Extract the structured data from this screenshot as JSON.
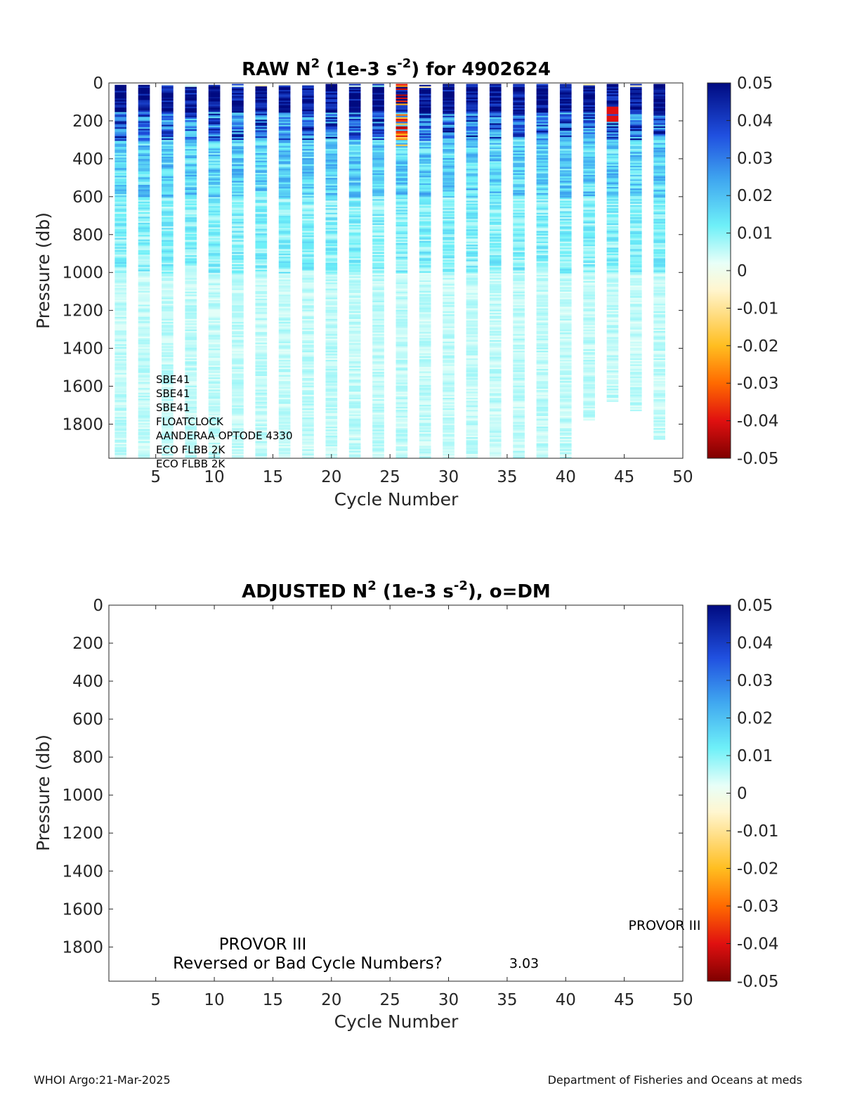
{
  "chart_data": [
    {
      "type": "heatmap",
      "title": {
        "prefix": "RAW N",
        "sup1": "2",
        "mid": " (1e-3 s",
        "sup2": "-2",
        "suffix": ") for 4902624"
      },
      "xlabel": "Cycle Number",
      "ylabel": "Pressure (db)",
      "xlim": [
        1,
        50
      ],
      "ylim": [
        1980,
        0
      ],
      "xticks": [
        5,
        10,
        15,
        20,
        25,
        30,
        35,
        40,
        45,
        50
      ],
      "yticks": [
        0,
        200,
        400,
        600,
        800,
        1000,
        1200,
        1400,
        1600,
        1800
      ],
      "colorbar": {
        "range": [
          -0.05,
          0.05
        ],
        "ticks": [
          "0.05",
          "0.04",
          "0.03",
          "0.02",
          "0.01",
          "0",
          "-0.01",
          "-0.02",
          "-0.03",
          "-0.04",
          "-0.05"
        ]
      },
      "annotations": [
        "SBE41",
        "SBE41",
        "SBE41",
        "FLOATCLOCK",
        "AANDERAA OPTODE 4330",
        "ECO FLBB 2K",
        "ECO FLBB 2K"
      ],
      "profiles": [
        {
          "cycle": 2,
          "top": 10,
          "bottom": 1980
        },
        {
          "cycle": 4,
          "top": 10,
          "bottom": 1980
        },
        {
          "cycle": 6,
          "top": 5,
          "bottom": 1980
        },
        {
          "cycle": 8,
          "top": 5,
          "bottom": 1980
        },
        {
          "cycle": 10,
          "top": 10,
          "bottom": 1980
        },
        {
          "cycle": 12,
          "top": 5,
          "bottom": 1980
        },
        {
          "cycle": 14,
          "top": 10,
          "bottom": 1980
        },
        {
          "cycle": 16,
          "top": 5,
          "bottom": 1980
        },
        {
          "cycle": 18,
          "top": 5,
          "bottom": 1980
        },
        {
          "cycle": 20,
          "top": 5,
          "bottom": 1980
        },
        {
          "cycle": 22,
          "top": 5,
          "bottom": 1980
        },
        {
          "cycle": 24,
          "top": 5,
          "bottom": 1980
        },
        {
          "cycle": 26,
          "top": 5,
          "bottom": 1980
        },
        {
          "cycle": 28,
          "top": 10,
          "bottom": 1980
        },
        {
          "cycle": 30,
          "top": 5,
          "bottom": 1980
        },
        {
          "cycle": 32,
          "top": 5,
          "bottom": 1980
        },
        {
          "cycle": 34,
          "top": 5,
          "bottom": 1980
        },
        {
          "cycle": 36,
          "top": 5,
          "bottom": 1980
        },
        {
          "cycle": 38,
          "top": 5,
          "bottom": 1980
        },
        {
          "cycle": 40,
          "top": 5,
          "bottom": 1980
        },
        {
          "cycle": 42,
          "top": 5,
          "bottom": 1780
        },
        {
          "cycle": 44,
          "top": 5,
          "bottom": 1680
        },
        {
          "cycle": 46,
          "top": 5,
          "bottom": 1730
        },
        {
          "cycle": 48,
          "top": 5,
          "bottom": 1880
        }
      ]
    },
    {
      "type": "heatmap",
      "title": {
        "prefix": "ADJUSTED N",
        "sup1": "2",
        "mid": " (1e-3 s",
        "sup2": "-2",
        "suffix": "), o=DM"
      },
      "xlabel": "Cycle Number",
      "ylabel": "Pressure (db)",
      "xlim": [
        1,
        50
      ],
      "ylim": [
        1980,
        0
      ],
      "xticks": [
        5,
        10,
        15,
        20,
        25,
        30,
        35,
        40,
        45,
        50
      ],
      "yticks": [
        0,
        200,
        400,
        600,
        800,
        1000,
        1200,
        1400,
        1600,
        1800
      ],
      "colorbar": {
        "range": [
          -0.05,
          0.05
        ],
        "ticks": [
          "0.05",
          "0.04",
          "0.03",
          "0.02",
          "0.01",
          "0",
          "-0.01",
          "-0.02",
          "-0.03",
          "-0.04",
          "-0.05"
        ]
      },
      "annotations": [
        "PROVOR III",
        "Reversed or Bad Cycle Numbers?",
        "3.03",
        "PROVOR III"
      ],
      "profiles": []
    }
  ],
  "footer": {
    "left": "WHOI Argo:21-Mar-2025",
    "right": "Department of Fisheries and Oceans at meds"
  }
}
